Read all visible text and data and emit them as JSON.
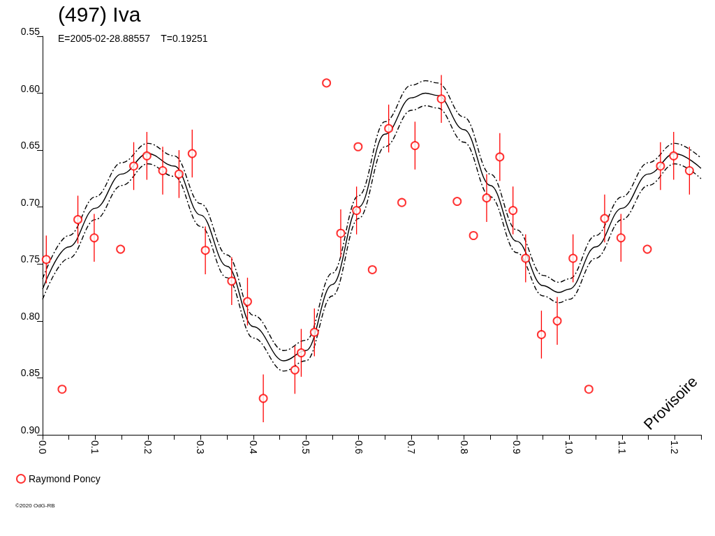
{
  "chart_data": {
    "type": "scatter",
    "title": "(497) Iva",
    "subtitle": "E=2005-02-28.88557    T=0.19251",
    "annotations": [
      "Provisoire",
      "©2020 OdG-RB"
    ],
    "xlim": [
      0,
      1.25
    ],
    "ylim": [
      0.9,
      0.55
    ],
    "xticks": [
      {
        "value": 0,
        "label": "0.0"
      },
      {
        "value": 0.05,
        "label": null
      },
      {
        "value": 0.1,
        "label": "0.1"
      },
      {
        "value": 0.15,
        "label": null
      },
      {
        "value": 0.2,
        "label": "0.2"
      },
      {
        "value": 0.25,
        "label": null
      },
      {
        "value": 0.3,
        "label": "0.3"
      },
      {
        "value": 0.35,
        "label": null
      },
      {
        "value": 0.4,
        "label": "0.4"
      },
      {
        "value": 0.45,
        "label": null
      },
      {
        "value": 0.5,
        "label": "0.5"
      },
      {
        "value": 0.55,
        "label": null
      },
      {
        "value": 0.6,
        "label": "0.6"
      },
      {
        "value": 0.65,
        "label": null
      },
      {
        "value": 0.7,
        "label": "0.7"
      },
      {
        "value": 0.75,
        "label": null
      },
      {
        "value": 0.8,
        "label": "0.8"
      },
      {
        "value": 0.85,
        "label": null
      },
      {
        "value": 0.9,
        "label": "0.9"
      },
      {
        "value": 0.95,
        "label": null
      },
      {
        "value": 1.0,
        "label": "1.0"
      },
      {
        "value": 1.05,
        "label": null
      },
      {
        "value": 1.1,
        "label": "1.1"
      },
      {
        "value": 1.15,
        "label": null
      },
      {
        "value": 1.2,
        "label": "1.2"
      },
      {
        "value": 1.25,
        "label": null
      }
    ],
    "yticks": [
      0.55,
      {
        "value": 0.6,
        "label": "0.60"
      },
      0.65,
      {
        "value": 0.7,
        "label": "0.70"
      },
      0.75,
      {
        "value": 0.8,
        "label": "0.80"
      },
      0.85,
      {
        "value": 0.9,
        "label": "0.90"
      }
    ],
    "grid": false,
    "legend": "bottom left",
    "marker": "circle",
    "series": [
      {
        "name": "Raymond Poncy",
        "color": "#ff0000",
        "x": [
          0.007,
          0.037,
          0.067,
          0.098,
          0.148,
          0.173,
          0.198,
          0.228,
          0.259,
          0.284,
          0.309,
          0.359,
          0.389,
          0.419,
          0.479,
          0.491,
          0.516,
          0.539,
          0.566,
          0.596,
          0.599,
          0.626,
          0.657,
          0.682,
          0.707,
          0.757,
          0.787,
          0.818,
          0.843,
          0.868,
          0.893,
          0.917,
          0.947,
          0.977,
          1.007,
          1.037,
          1.067,
          1.098,
          1.148,
          1.173,
          1.198,
          1.228
        ],
        "values": [
          0.746,
          0.86,
          0.711,
          0.727,
          0.737,
          0.664,
          0.655,
          0.668,
          0.671,
          0.653,
          0.738,
          0.765,
          0.783,
          0.868,
          0.843,
          0.828,
          0.81,
          0.591,
          0.723,
          0.703,
          0.647,
          0.755,
          0.631,
          0.696,
          0.646,
          0.605,
          0.695,
          0.725,
          0.692,
          0.656,
          0.703,
          0.745,
          0.812,
          0.8,
          0.745,
          0.86,
          0.71,
          0.727,
          0.737,
          0.664,
          0.655,
          0.668
        ],
        "errors": [
          0.021,
          null,
          0.021,
          0.021,
          null,
          0.021,
          0.021,
          0.021,
          0.021,
          0.021,
          0.021,
          0.021,
          0.021,
          0.021,
          0.021,
          0.021,
          0.021,
          null,
          0.021,
          0.021,
          null,
          null,
          0.021,
          null,
          0.021,
          0.021,
          null,
          null,
          0.021,
          0.021,
          0.021,
          0.021,
          0.021,
          0.021,
          0.021,
          null,
          0.021,
          0.021,
          null,
          0.021,
          0.021,
          0.021
        ]
      },
      {
        "type": "line",
        "color": "#000000",
        "line_style": "solid",
        "marker": "none",
        "x": [
          0,
          0.05,
          0.1,
          0.15,
          0.2,
          0.25,
          0.3,
          0.35,
          0.4,
          0.458,
          0.5,
          0.55,
          0.6,
          0.65,
          0.7,
          0.727,
          0.75,
          0.8,
          0.85,
          0.9,
          0.95,
          0.98,
          1.0,
          1.05,
          1.1,
          1.15,
          1.2,
          1.25
        ],
        "values": [
          0.772,
          0.735,
          0.701,
          0.671,
          0.653,
          0.664,
          0.707,
          0.752,
          0.805,
          0.835,
          0.826,
          0.768,
          0.7,
          0.636,
          0.604,
          0.6,
          0.602,
          0.632,
          0.681,
          0.73,
          0.769,
          0.775,
          0.772,
          0.735,
          0.701,
          0.671,
          0.653,
          0.666
        ]
      },
      {
        "type": "line",
        "color": "#000000",
        "line_style": "dashed",
        "marker": "none",
        "x": [
          0,
          0.05,
          0.1,
          0.15,
          0.2,
          0.25,
          0.3,
          0.35,
          0.4,
          0.458,
          0.5,
          0.55,
          0.6,
          0.65,
          0.7,
          0.727,
          0.75,
          0.8,
          0.85,
          0.9,
          0.95,
          0.98,
          1.0,
          1.05,
          1.1,
          1.15,
          1.2,
          1.25
        ],
        "values": [
          0.763,
          0.725,
          0.691,
          0.661,
          0.644,
          0.655,
          0.697,
          0.742,
          0.795,
          0.826,
          0.817,
          0.758,
          0.69,
          0.625,
          0.593,
          0.589,
          0.591,
          0.621,
          0.671,
          0.72,
          0.76,
          0.766,
          0.763,
          0.725,
          0.691,
          0.661,
          0.644,
          0.657
        ]
      },
      {
        "type": "line",
        "color": "#000000",
        "line_style": "dashed",
        "marker": "none",
        "x": [
          0,
          0.05,
          0.1,
          0.15,
          0.2,
          0.25,
          0.3,
          0.35,
          0.4,
          0.458,
          0.5,
          0.55,
          0.6,
          0.65,
          0.7,
          0.727,
          0.75,
          0.8,
          0.85,
          0.9,
          0.95,
          0.98,
          1.0,
          1.05,
          1.1,
          1.15,
          1.2,
          1.25
        ],
        "values": [
          0.781,
          0.745,
          0.711,
          0.681,
          0.662,
          0.673,
          0.717,
          0.762,
          0.815,
          0.844,
          0.835,
          0.778,
          0.71,
          0.647,
          0.615,
          0.611,
          0.613,
          0.643,
          0.691,
          0.74,
          0.778,
          0.784,
          0.781,
          0.745,
          0.711,
          0.681,
          0.662,
          0.675
        ]
      }
    ]
  }
}
